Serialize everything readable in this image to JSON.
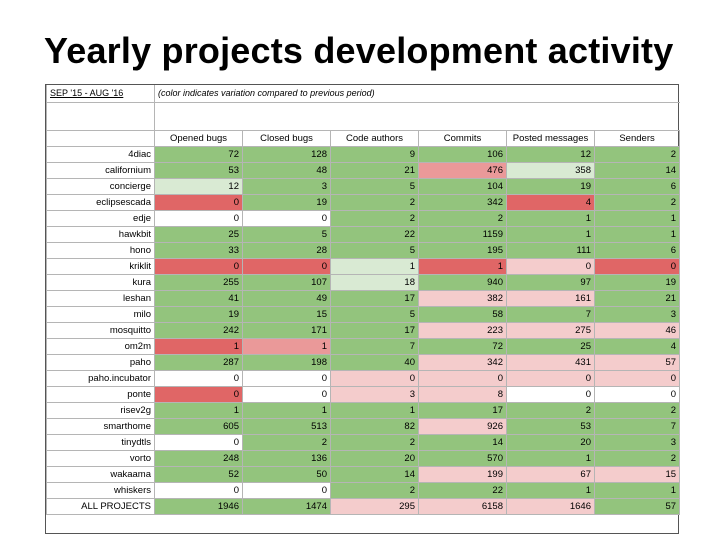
{
  "title": "Yearly projects development activity",
  "period": "SEP '15 - AUG '16",
  "note": "(color indicates variation compared to previous period)",
  "columns": [
    "Opened bugs",
    "Closed bugs",
    "Code authors",
    "Commits",
    "Posted messages",
    "Senders"
  ],
  "colors": {
    "g": "#93c47d",
    "lg": "#d9ead3",
    "w": "#ffffff",
    "p": "#f4cccc",
    "m": "#ea9999",
    "r": "#e06666"
  },
  "rows": [
    {
      "name": "4diac",
      "values": [
        "72",
        "128",
        "9",
        "106",
        "12",
        "2"
      ],
      "colors": [
        "g",
        "g",
        "g",
        "g",
        "g",
        "g"
      ]
    },
    {
      "name": "californium",
      "values": [
        "53",
        "48",
        "21",
        "476",
        "358",
        "14"
      ],
      "colors": [
        "g",
        "g",
        "g",
        "m",
        "lg",
        "g"
      ]
    },
    {
      "name": "concierge",
      "values": [
        "12",
        "3",
        "5",
        "104",
        "19",
        "6"
      ],
      "colors": [
        "lg",
        "g",
        "g",
        "g",
        "g",
        "g"
      ]
    },
    {
      "name": "eclipsescada",
      "values": [
        "0",
        "19",
        "2",
        "342",
        "4",
        "2"
      ],
      "colors": [
        "r",
        "g",
        "g",
        "g",
        "r",
        "g"
      ]
    },
    {
      "name": "edje",
      "values": [
        "0",
        "0",
        "2",
        "2",
        "1",
        "1"
      ],
      "colors": [
        "w",
        "w",
        "g",
        "g",
        "g",
        "g"
      ]
    },
    {
      "name": "hawkbit",
      "values": [
        "25",
        "5",
        "22",
        "1159",
        "1",
        "1"
      ],
      "colors": [
        "g",
        "g",
        "g",
        "g",
        "g",
        "g"
      ]
    },
    {
      "name": "hono",
      "values": [
        "33",
        "28",
        "5",
        "195",
        "111",
        "6"
      ],
      "colors": [
        "g",
        "g",
        "g",
        "g",
        "g",
        "g"
      ]
    },
    {
      "name": "kriklit",
      "values": [
        "0",
        "0",
        "1",
        "1",
        "0",
        "0"
      ],
      "colors": [
        "r",
        "r",
        "lg",
        "r",
        "p",
        "r"
      ]
    },
    {
      "name": "kura",
      "values": [
        "255",
        "107",
        "18",
        "940",
        "97",
        "19"
      ],
      "colors": [
        "g",
        "g",
        "lg",
        "g",
        "g",
        "g"
      ]
    },
    {
      "name": "leshan",
      "values": [
        "41",
        "49",
        "17",
        "382",
        "161",
        "21"
      ],
      "colors": [
        "g",
        "g",
        "g",
        "p",
        "p",
        "g"
      ]
    },
    {
      "name": "milo",
      "values": [
        "19",
        "15",
        "5",
        "58",
        "7",
        "3"
      ],
      "colors": [
        "g",
        "g",
        "g",
        "g",
        "g",
        "g"
      ]
    },
    {
      "name": "mosquitto",
      "values": [
        "242",
        "171",
        "17",
        "223",
        "275",
        "46"
      ],
      "colors": [
        "g",
        "g",
        "g",
        "p",
        "p",
        "p"
      ]
    },
    {
      "name": "om2m",
      "values": [
        "1",
        "1",
        "7",
        "72",
        "25",
        "4"
      ],
      "colors": [
        "r",
        "m",
        "g",
        "g",
        "g",
        "g"
      ]
    },
    {
      "name": "paho",
      "values": [
        "287",
        "198",
        "40",
        "342",
        "431",
        "57"
      ],
      "colors": [
        "g",
        "g",
        "g",
        "p",
        "p",
        "p"
      ]
    },
    {
      "name": "paho.incubator",
      "values": [
        "0",
        "0",
        "0",
        "0",
        "0",
        "0"
      ],
      "colors": [
        "w",
        "w",
        "p",
        "p",
        "p",
        "p"
      ]
    },
    {
      "name": "ponte",
      "values": [
        "0",
        "0",
        "3",
        "8",
        "0",
        "0"
      ],
      "colors": [
        "r",
        "w",
        "p",
        "p",
        "w",
        "w"
      ]
    },
    {
      "name": "risev2g",
      "values": [
        "1",
        "1",
        "1",
        "17",
        "2",
        "2"
      ],
      "colors": [
        "g",
        "g",
        "g",
        "g",
        "g",
        "g"
      ]
    },
    {
      "name": "smarthome",
      "values": [
        "605",
        "513",
        "82",
        "926",
        "53",
        "7"
      ],
      "colors": [
        "g",
        "g",
        "g",
        "p",
        "g",
        "g"
      ]
    },
    {
      "name": "tinydtls",
      "values": [
        "0",
        "2",
        "2",
        "14",
        "20",
        "3"
      ],
      "colors": [
        "w",
        "g",
        "g",
        "g",
        "g",
        "g"
      ]
    },
    {
      "name": "vorto",
      "values": [
        "248",
        "136",
        "20",
        "570",
        "1",
        "2"
      ],
      "colors": [
        "g",
        "g",
        "g",
        "g",
        "g",
        "g"
      ]
    },
    {
      "name": "wakaama",
      "values": [
        "52",
        "50",
        "14",
        "199",
        "67",
        "15"
      ],
      "colors": [
        "g",
        "g",
        "g",
        "p",
        "p",
        "p"
      ]
    },
    {
      "name": "whiskers",
      "values": [
        "0",
        "0",
        "2",
        "22",
        "1",
        "1"
      ],
      "colors": [
        "w",
        "w",
        "g",
        "g",
        "g",
        "g"
      ]
    },
    {
      "name": "ALL PROJECTS",
      "values": [
        "1946",
        "1474",
        "295",
        "6158",
        "1646",
        "57"
      ],
      "colors": [
        "g",
        "g",
        "p",
        "p",
        "p",
        "g"
      ]
    }
  ]
}
